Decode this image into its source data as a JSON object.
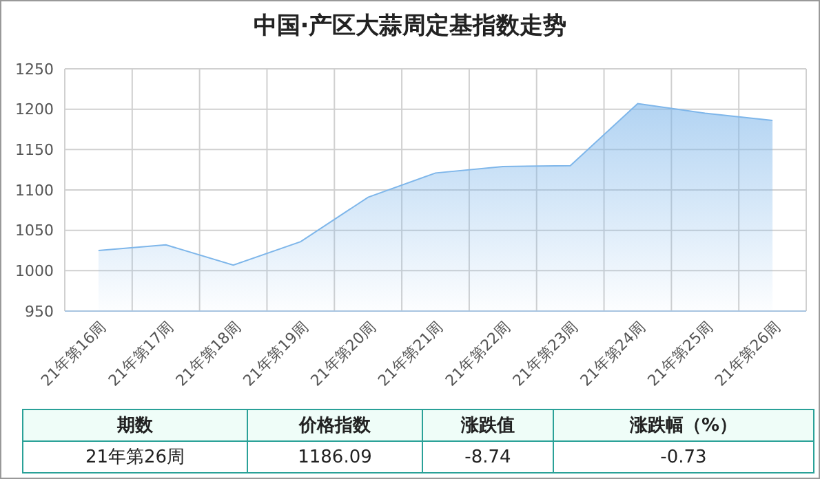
{
  "chart_data": {
    "type": "area",
    "title": "中国·产区大蒜周定基指数走势",
    "categories": [
      "21年第16周",
      "21年第17周",
      "21年第18周",
      "21年第19周",
      "21年第20周",
      "21年第21周",
      "21年第22周",
      "21年第23周",
      "21年第24周",
      "21年第25周",
      "21年第26周"
    ],
    "values": [
      1025,
      1032,
      1007,
      1036,
      1091,
      1121,
      1129,
      1130,
      1207,
      1195,
      1186.09
    ],
    "color": "#7eb6ea",
    "ylim": [
      950,
      1250
    ],
    "yticks": [
      950,
      1000,
      1050,
      1100,
      1150,
      1200,
      1250
    ],
    "grid": true,
    "annotations": [
      "期数",
      "价格指数",
      "涨跌值",
      "涨跌幅（%）",
      "21年第26周",
      "1186.09",
      "-8.74",
      "-0.73"
    ]
  }
}
